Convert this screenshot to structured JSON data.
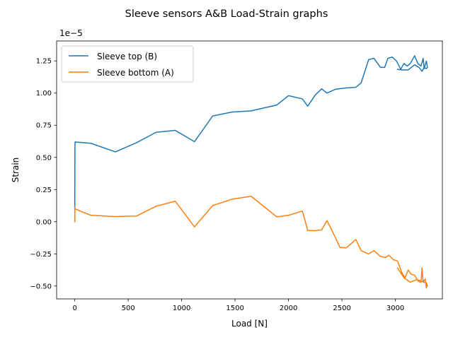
{
  "chart_data": {
    "type": "line",
    "title": "Sleeve sensors A&B Load-Strain graphs",
    "xlabel": "Load [N]",
    "ylabel": "Strain",
    "y_scale_label": "1e−5",
    "xlim": [
      -170,
      3440
    ],
    "ylim": [
      -6e-06,
      1.405e-05
    ],
    "x_ticks": [
      0,
      500,
      1000,
      1500,
      2000,
      2500,
      3000
    ],
    "x_tick_labels": [
      "0",
      "500",
      "1000",
      "1500",
      "2000",
      "2500",
      "3000"
    ],
    "y_ticks": [
      -5e-06,
      -2.5e-06,
      0,
      2.5e-06,
      5e-06,
      7.5e-06,
      1e-05,
      1.25e-05
    ],
    "y_tick_labels": [
      "−0.50",
      "−0.25",
      "0.00",
      "0.25",
      "0.50",
      "0.75",
      "1.00",
      "1.25"
    ],
    "grid": false,
    "legend_position": "upper-left",
    "series": [
      {
        "name": "Sleeve top (B)",
        "color": "#1f77b4",
        "x": [
          0,
          1,
          2,
          3,
          150,
          380,
          580,
          760,
          940,
          1120,
          1290,
          1470,
          1650,
          1890,
          2000,
          2130,
          2180,
          2250,
          2310,
          2360,
          2440,
          2540,
          2630,
          2680,
          2750,
          2800,
          2860,
          2900,
          2930,
          2970,
          3010,
          3050,
          3080,
          3110,
          3140,
          3180,
          3210,
          3240,
          3260,
          3270,
          3280,
          3290,
          3300,
          3290,
          3270,
          3250,
          3220,
          3180,
          3120,
          3060,
          3020
        ],
        "y": [
          1e-06,
          5.5e-06,
          6e-06,
          6.2e-06,
          6.1e-06,
          5.43e-06,
          6.15e-06,
          6.95e-06,
          7.1e-06,
          6.22e-06,
          8.22e-06,
          8.52e-06,
          8.62e-06,
          9.07e-06,
          9.8e-06,
          9.55e-06,
          8.98e-06,
          9.85e-06,
          1.033e-05,
          1e-05,
          1.03e-05,
          1.04e-05,
          1.045e-05,
          1.08e-05,
          1.26e-05,
          1.27e-05,
          1.2e-05,
          1.2e-05,
          1.27e-05,
          1.28e-05,
          1.25e-05,
          1.185e-05,
          1.23e-05,
          1.21e-05,
          1.23e-05,
          1.29e-05,
          1.23e-05,
          1.21e-05,
          1.27e-05,
          1.19e-05,
          1.22e-05,
          1.25e-05,
          1.2e-05,
          1.19e-05,
          1.2e-05,
          1.17e-05,
          1.2e-05,
          1.22e-05,
          1.18e-05,
          1.18e-05,
          1.185e-05
        ]
      },
      {
        "name": "Sleeve bottom (A)",
        "color": "#ff7f0e",
        "x": [
          0,
          1,
          2,
          150,
          380,
          580,
          760,
          940,
          1120,
          1290,
          1470,
          1650,
          1890,
          2000,
          2130,
          2180,
          2250,
          2310,
          2360,
          2440,
          2480,
          2540,
          2630,
          2680,
          2750,
          2800,
          2860,
          2910,
          2940,
          2980,
          3020,
          3060,
          3090,
          3120,
          3150,
          3180,
          3210,
          3240,
          3250,
          3260,
          3280,
          3290,
          3295,
          3300,
          3290,
          3270,
          3240,
          3200,
          3140,
          3080,
          3020
        ],
        "y": [
          0,
          1.1e-06,
          1e-06,
          5e-07,
          4e-07,
          4.5e-07,
          1.2e-06,
          1.6e-06,
          -4e-07,
          1.25e-06,
          1.75e-06,
          1.98e-06,
          3.8e-07,
          5e-07,
          8.3e-07,
          -6.8e-07,
          -7e-07,
          -6.3e-07,
          9e-08,
          -1.25e-06,
          -1.98e-06,
          -2.04e-06,
          -1.38e-06,
          -2.25e-06,
          -2.5e-06,
          -2.25e-06,
          -2.7e-06,
          -2.77e-06,
          -2.6e-06,
          -2.95e-06,
          -3.05e-06,
          -3.95e-06,
          -4.35e-06,
          -3.75e-06,
          -4.1e-06,
          -4.15e-06,
          -4.6e-06,
          -4.72e-06,
          -3.6e-06,
          -4.7e-06,
          -4.45e-06,
          -5.15e-06,
          -4.85e-06,
          -5e-06,
          -4.75e-06,
          -4.72e-06,
          -4.6e-06,
          -4.5e-06,
          -4.7e-06,
          -4.35e-06,
          -3.6e-06
        ]
      }
    ]
  }
}
